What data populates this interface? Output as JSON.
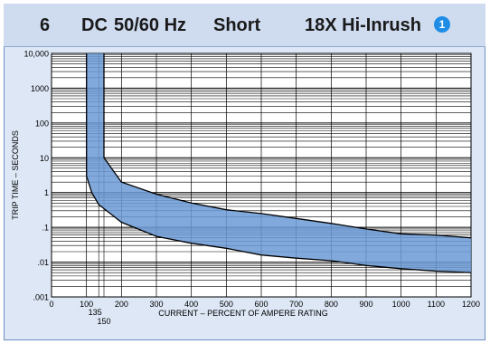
{
  "header": {
    "num": "6",
    "dc": "DC",
    "freq": "50/60 Hz",
    "delay": "Short",
    "inrush": "18X Hi-Inrush",
    "badge": "1"
  },
  "colors": {
    "panel": "#dde7f5",
    "header": "#cfdcf0",
    "band_fill": "#6b9ad6",
    "badge": "#1f8de6"
  },
  "chart_data": {
    "type": "area",
    "title": "",
    "xlabel": "CURRENT – PERCENT OF AMPERE RATING",
    "ylabel": "TRIP TIME – SECONDS",
    "xlim": [
      0,
      1200
    ],
    "ylim": [
      0.001,
      10000
    ],
    "y_scale": "log",
    "grid": true,
    "x_ticks": [
      "0",
      "100",
      "200",
      "300",
      "400",
      "500",
      "600",
      "700",
      "800",
      "900",
      "1000",
      "1100",
      "1200"
    ],
    "x_extra_ticks": [
      "135",
      "150"
    ],
    "y_ticks": [
      "10,000",
      "1000",
      "100",
      "10",
      "1",
      ".1",
      ".01",
      ".001"
    ],
    "series": [
      {
        "values_upper": [
          [
            150,
            10000
          ],
          [
            150,
            10
          ],
          [
            200,
            2
          ],
          [
            300,
            0.9
          ],
          [
            400,
            0.5
          ],
          [
            500,
            0.32
          ],
          [
            600,
            0.25
          ],
          [
            700,
            0.18
          ],
          [
            800,
            0.13
          ],
          [
            900,
            0.09
          ],
          [
            1000,
            0.065
          ],
          [
            1100,
            0.06
          ],
          [
            1200,
            0.05
          ]
        ],
        "values_lower": [
          [
            100,
            10000
          ],
          [
            100,
            3
          ],
          [
            115,
            1
          ],
          [
            135,
            0.45
          ],
          [
            200,
            0.14
          ],
          [
            300,
            0.055
          ],
          [
            400,
            0.035
          ],
          [
            500,
            0.025
          ],
          [
            600,
            0.016
          ],
          [
            700,
            0.013
          ],
          [
            800,
            0.011
          ],
          [
            900,
            0.008
          ],
          [
            1000,
            0.0065
          ],
          [
            1100,
            0.0055
          ],
          [
            1200,
            0.005
          ]
        ]
      }
    ]
  }
}
